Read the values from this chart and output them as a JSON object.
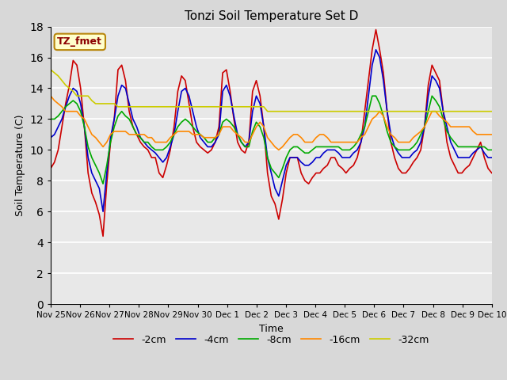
{
  "title": "Tonzi Soil Temperature Set D",
  "xlabel": "Time",
  "ylabel": "Soil Temperature (C)",
  "ylim": [
    0,
    18
  ],
  "yticks": [
    0,
    2,
    4,
    6,
    8,
    10,
    12,
    14,
    16,
    18
  ],
  "x_labels": [
    "Nov 25",
    "Nov 26",
    "Nov 27",
    "Nov 28",
    "Nov 29",
    "Nov 30",
    "Dec 1",
    "Dec 2",
    "Dec 3",
    "Dec 4",
    "Dec 5",
    "Dec 6",
    "Dec 7",
    "Dec 8",
    "Dec 9",
    "Dec 10"
  ],
  "annotation_text": "TZ_fmet",
  "annotation_color": "#8B0000",
  "annotation_bg": "#FFFFCC",
  "annotation_border": "#B8860B",
  "legend_entries": [
    "-2cm",
    "-4cm",
    "-8cm",
    "-16cm",
    "-32cm"
  ],
  "line_colors": [
    "#CC0000",
    "#0000CC",
    "#00AA00",
    "#FF8800",
    "#CCCC00"
  ],
  "series": {
    "neg2cm": [
      8.8,
      9.2,
      10.0,
      11.5,
      13.0,
      14.2,
      15.8,
      15.5,
      14.0,
      11.5,
      8.5,
      7.2,
      6.6,
      5.8,
      4.4,
      7.8,
      10.5,
      12.0,
      15.2,
      15.5,
      14.5,
      12.5,
      11.5,
      11.0,
      10.5,
      10.2,
      10.0,
      9.5,
      9.5,
      8.5,
      8.2,
      9.0,
      10.0,
      11.5,
      13.8,
      14.8,
      14.5,
      13.0,
      11.5,
      10.5,
      10.2,
      10.0,
      9.8,
      10.0,
      10.5,
      11.5,
      15.0,
      15.2,
      13.8,
      12.0,
      10.5,
      10.0,
      9.8,
      10.5,
      13.8,
      14.5,
      13.5,
      11.5,
      8.5,
      7.0,
      6.5,
      5.5,
      6.8,
      8.5,
      9.5,
      9.5,
      9.5,
      8.5,
      8.0,
      7.8,
      8.2,
      8.5,
      8.5,
      8.8,
      9.0,
      9.5,
      9.5,
      9.0,
      8.8,
      8.5,
      8.8,
      9.0,
      9.5,
      10.5,
      12.5,
      14.5,
      16.5,
      17.8,
      16.5,
      15.0,
      12.5,
      10.5,
      9.5,
      8.8,
      8.5,
      8.5,
      8.8,
      9.2,
      9.5,
      10.0,
      11.5,
      14.2,
      15.5,
      15.0,
      14.5,
      12.5,
      10.5,
      9.5,
      9.0,
      8.5,
      8.5,
      8.8,
      9.0,
      9.5,
      10.0,
      10.5,
      9.5,
      8.8,
      8.5
    ],
    "neg4cm": [
      10.8,
      11.0,
      11.5,
      12.0,
      12.8,
      13.5,
      14.0,
      13.8,
      13.0,
      11.5,
      9.5,
      8.5,
      8.0,
      7.5,
      6.0,
      8.5,
      10.8,
      12.0,
      13.5,
      14.2,
      14.0,
      13.0,
      12.0,
      11.5,
      10.8,
      10.5,
      10.2,
      10.0,
      9.8,
      9.5,
      9.2,
      9.5,
      10.2,
      11.0,
      12.5,
      13.8,
      14.0,
      13.5,
      12.5,
      11.5,
      10.8,
      10.5,
      10.2,
      10.2,
      10.5,
      11.0,
      13.8,
      14.2,
      13.5,
      12.2,
      11.0,
      10.5,
      10.2,
      10.5,
      12.5,
      13.5,
      13.0,
      11.5,
      9.5,
      8.5,
      7.5,
      7.0,
      8.0,
      9.0,
      9.5,
      9.5,
      9.5,
      9.2,
      9.0,
      9.0,
      9.2,
      9.5,
      9.5,
      9.8,
      10.0,
      10.0,
      10.0,
      9.8,
      9.5,
      9.5,
      9.5,
      9.8,
      10.0,
      10.5,
      11.5,
      13.5,
      15.5,
      16.5,
      16.0,
      14.5,
      12.5,
      11.0,
      10.2,
      9.8,
      9.5,
      9.5,
      9.5,
      9.8,
      10.0,
      10.5,
      11.5,
      13.5,
      14.8,
      14.5,
      14.0,
      12.5,
      11.5,
      10.5,
      10.0,
      9.5,
      9.5,
      9.5,
      9.5,
      9.8,
      10.0,
      10.2,
      9.8,
      9.5,
      9.5
    ],
    "neg8cm": [
      12.0,
      12.0,
      12.2,
      12.5,
      12.8,
      13.0,
      13.2,
      13.0,
      12.5,
      11.5,
      10.2,
      9.5,
      9.0,
      8.5,
      7.8,
      9.0,
      10.5,
      11.5,
      12.2,
      12.5,
      12.2,
      12.0,
      11.5,
      11.0,
      10.8,
      10.5,
      10.5,
      10.2,
      10.0,
      10.0,
      10.0,
      10.2,
      10.5,
      11.0,
      11.5,
      11.8,
      12.0,
      11.8,
      11.5,
      11.2,
      11.0,
      10.8,
      10.5,
      10.5,
      10.8,
      11.0,
      11.8,
      12.0,
      11.8,
      11.5,
      11.0,
      10.5,
      10.2,
      10.2,
      11.2,
      11.8,
      11.5,
      10.8,
      9.5,
      8.8,
      8.5,
      8.2,
      8.8,
      9.5,
      10.0,
      10.2,
      10.2,
      10.0,
      9.8,
      9.8,
      10.0,
      10.2,
      10.2,
      10.2,
      10.2,
      10.2,
      10.2,
      10.2,
      10.0,
      10.0,
      10.0,
      10.2,
      10.5,
      11.0,
      11.5,
      12.5,
      13.5,
      13.5,
      13.0,
      12.2,
      11.2,
      10.5,
      10.2,
      10.0,
      10.0,
      10.0,
      10.0,
      10.2,
      10.5,
      11.0,
      11.5,
      12.5,
      13.5,
      13.2,
      12.8,
      12.0,
      11.2,
      10.8,
      10.5,
      10.2,
      10.2,
      10.2,
      10.2,
      10.2,
      10.2,
      10.2,
      10.2,
      10.0,
      10.0
    ],
    "neg16cm": [
      13.5,
      13.2,
      13.0,
      12.8,
      12.5,
      12.5,
      12.5,
      12.5,
      12.2,
      12.0,
      11.5,
      11.0,
      10.8,
      10.5,
      10.2,
      10.5,
      11.0,
      11.2,
      11.2,
      11.2,
      11.2,
      11.0,
      11.0,
      11.0,
      11.0,
      11.0,
      10.8,
      10.8,
      10.5,
      10.5,
      10.5,
      10.5,
      10.8,
      11.0,
      11.2,
      11.2,
      11.2,
      11.2,
      11.0,
      11.0,
      11.0,
      10.8,
      10.8,
      10.8,
      10.8,
      11.0,
      11.5,
      11.5,
      11.5,
      11.2,
      11.0,
      10.8,
      10.5,
      10.5,
      11.0,
      11.5,
      11.8,
      11.5,
      10.8,
      10.5,
      10.2,
      10.0,
      10.2,
      10.5,
      10.8,
      11.0,
      11.0,
      10.8,
      10.5,
      10.5,
      10.5,
      10.8,
      11.0,
      11.0,
      10.8,
      10.5,
      10.5,
      10.5,
      10.5,
      10.5,
      10.5,
      10.5,
      10.5,
      10.8,
      11.0,
      11.5,
      12.0,
      12.2,
      12.5,
      12.2,
      11.5,
      11.0,
      10.8,
      10.5,
      10.5,
      10.5,
      10.5,
      10.8,
      11.0,
      11.2,
      11.5,
      12.0,
      12.5,
      12.5,
      12.2,
      12.0,
      11.8,
      11.5,
      11.5,
      11.5,
      11.5,
      11.5,
      11.5,
      11.2,
      11.0,
      11.0,
      11.0,
      11.0,
      11.0
    ],
    "neg32cm": [
      15.2,
      15.0,
      14.8,
      14.5,
      14.2,
      14.0,
      13.8,
      13.5,
      13.5,
      13.5,
      13.5,
      13.2,
      13.0,
      13.0,
      13.0,
      13.0,
      13.0,
      13.0,
      12.8,
      12.8,
      12.8,
      12.8,
      12.8,
      12.8,
      12.8,
      12.8,
      12.8,
      12.8,
      12.8,
      12.8,
      12.8,
      12.8,
      12.8,
      12.8,
      12.8,
      12.8,
      12.8,
      12.8,
      12.8,
      12.8,
      12.8,
      12.8,
      12.8,
      12.8,
      12.8,
      12.8,
      12.8,
      12.8,
      12.8,
      12.8,
      12.8,
      12.8,
      12.8,
      12.8,
      12.8,
      12.8,
      12.8,
      12.8,
      12.5,
      12.5,
      12.5,
      12.5,
      12.5,
      12.5,
      12.5,
      12.5,
      12.5,
      12.5,
      12.5,
      12.5,
      12.5,
      12.5,
      12.5,
      12.5,
      12.5,
      12.5,
      12.5,
      12.5,
      12.5,
      12.5,
      12.5,
      12.5,
      12.5,
      12.5,
      12.5,
      12.5,
      12.5,
      12.5,
      12.5,
      12.5,
      12.5,
      12.5,
      12.5,
      12.5,
      12.5,
      12.5,
      12.5,
      12.5,
      12.5,
      12.5,
      12.5,
      12.5,
      12.5,
      12.5,
      12.5,
      12.5,
      12.5,
      12.5,
      12.5,
      12.5,
      12.5,
      12.5,
      12.5,
      12.5,
      12.5,
      12.5,
      12.5,
      12.5,
      12.5
    ]
  }
}
